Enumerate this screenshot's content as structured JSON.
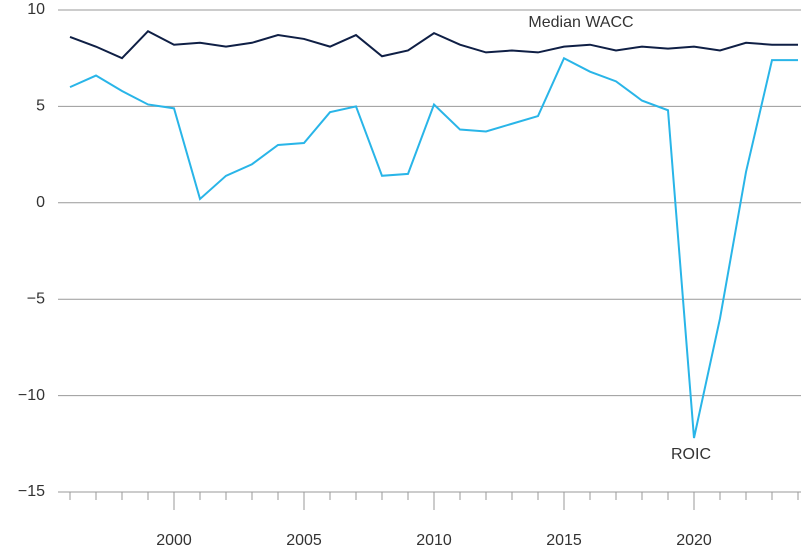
{
  "chart_data": {
    "type": "line",
    "x": [
      1996,
      1997,
      1998,
      1999,
      2000,
      2001,
      2002,
      2003,
      2004,
      2005,
      2006,
      2007,
      2008,
      2009,
      2010,
      2011,
      2012,
      2013,
      2014,
      2015,
      2016,
      2017,
      2018,
      2019,
      2020,
      2021,
      2022,
      2023,
      2024
    ],
    "series": [
      {
        "name": "Median WACC",
        "color": "#0f1f45",
        "values": [
          8.6,
          8.1,
          7.5,
          8.9,
          8.2,
          8.3,
          8.1,
          8.3,
          8.7,
          8.5,
          8.1,
          8.7,
          7.6,
          7.9,
          8.8,
          8.2,
          7.8,
          7.9,
          7.8,
          8.1,
          8.2,
          7.9,
          8.1,
          8.0,
          8.1,
          7.9,
          8.3,
          8.2,
          8.2
        ]
      },
      {
        "name": "ROIC",
        "color": "#29b5e8",
        "values": [
          6.0,
          6.6,
          5.8,
          5.1,
          4.9,
          0.2,
          1.4,
          2.0,
          3.0,
          3.1,
          4.7,
          5.0,
          1.4,
          1.5,
          5.1,
          3.8,
          3.7,
          4.1,
          4.5,
          7.5,
          6.8,
          6.3,
          5.3,
          4.8,
          -12.2,
          -6.0,
          1.6,
          7.4,
          7.4
        ]
      }
    ],
    "xlim": [
      1996,
      2024
    ],
    "xticks": [
      2000,
      2005,
      2010,
      2015,
      2020
    ],
    "ylim": [
      -15,
      10
    ],
    "yticks": [
      {
        "value": -15,
        "label": "−15"
      },
      {
        "value": -10,
        "label": "−10"
      },
      {
        "value": -5,
        "label": "−5"
      },
      0,
      5,
      10
    ],
    "grid": true
  }
}
